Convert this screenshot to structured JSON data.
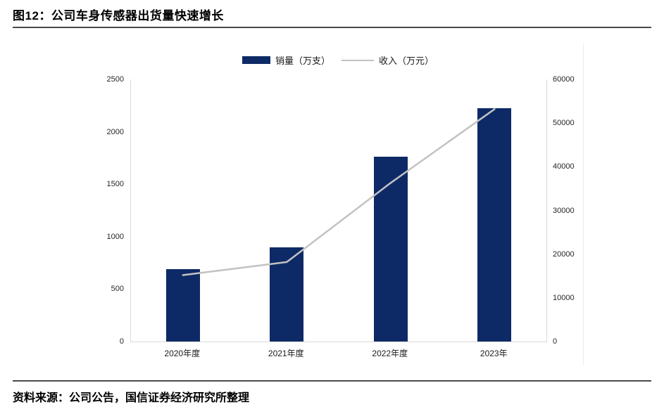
{
  "figure": {
    "title": "图12：公司车身传感器出货量快速增长"
  },
  "source_note": "资料来源：公司公告，国信证券经济研究所整理",
  "colors": {
    "bar": "#0e2a66",
    "line": "#c2c2c2",
    "axis": "#d9d9d9",
    "tick_text": "#262626"
  },
  "chart_data": {
    "type": "bar",
    "subtype": "bar+line combo, dual axis",
    "title": "公司车身传感器出货量快速增长",
    "categories": [
      "2020年度",
      "2021年度",
      "2022年度",
      "2023年"
    ],
    "series": [
      {
        "name": "销量（万支）",
        "type": "bar",
        "axis": "left",
        "values": [
          690,
          900,
          1760,
          2225
        ]
      },
      {
        "name": "收入（万元）",
        "type": "line",
        "axis": "right",
        "values": [
          15200,
          18200,
          36300,
          53200
        ]
      }
    ],
    "left_axis": {
      "min": 0,
      "max": 2500,
      "step": 500,
      "ticks": [
        "0",
        "500",
        "1000",
        "1500",
        "2000",
        "2500"
      ]
    },
    "right_axis": {
      "min": 0,
      "max": 60000,
      "step": 10000,
      "ticks": [
        "0",
        "10000",
        "20000",
        "30000",
        "40000",
        "50000",
        "60000"
      ]
    },
    "legend_position": "top-center",
    "grid": false,
    "plot_background": "#ffffff"
  }
}
